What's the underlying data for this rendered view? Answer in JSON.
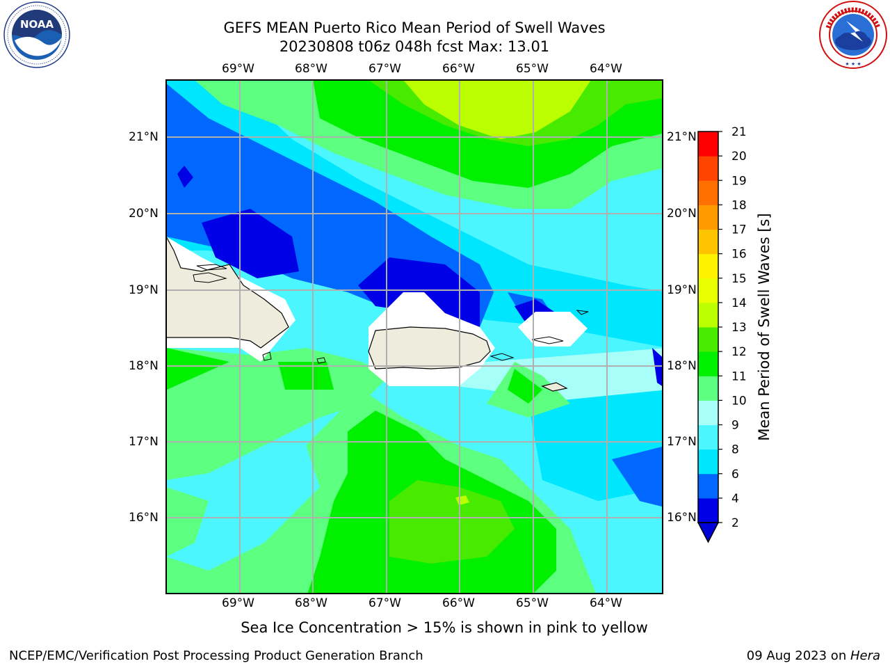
{
  "header": {
    "title_line1": "GEFS MEAN Puerto Rico Mean Period of Swell Waves",
    "title_line2": "20230808 t06z 048h fcst   Max: 13.01"
  },
  "logos": {
    "left": {
      "name": "noaa-logo",
      "text": "NOAA",
      "ring_text": "NATIONAL OCEANIC AND ATMOSPHERIC ADMINISTRATION · U.S. DEPARTMENT OF COMMERCE"
    },
    "right": {
      "name": "nws-logo",
      "ring_text": "NATIONAL WEATHER SERVICE"
    }
  },
  "axes": {
    "lon_ticks": [
      "69°W",
      "68°W",
      "67°W",
      "66°W",
      "65°W",
      "64°W"
    ],
    "lat_ticks": [
      "21°N",
      "20°N",
      "19°N",
      "18°N",
      "17°N",
      "16°N"
    ]
  },
  "colorbar": {
    "label": "Mean Period of Swell Waves [s]",
    "ticks": [
      "2",
      "4",
      "6",
      "8",
      "9",
      "10",
      "11",
      "12",
      "13",
      "14",
      "15",
      "16",
      "17",
      "18",
      "19",
      "20",
      "21"
    ],
    "colors": [
      "#0000e6",
      "#0068ff",
      "#00e6ff",
      "#4cf6ff",
      "#a8fffa",
      "#5cff80",
      "#00f000",
      "#48ea00",
      "#bcff00",
      "#e8ff00",
      "#fff200",
      "#ffc400",
      "#ff9a00",
      "#ff7000",
      "#ff4400",
      "#ff0000"
    ],
    "under_color": "#0000d8"
  },
  "caption": "Sea Ice Concentration > 15% is shown in pink to yellow",
  "footer": {
    "left": "NCEP/EMC/Verification Post Processing Product Generation Branch",
    "date": "09 Aug 2023 on ",
    "machine": "Hera"
  },
  "map_colors": {
    "land": "#eeecdc",
    "grid": "#b0b0b0",
    "coast": "#000000"
  }
}
